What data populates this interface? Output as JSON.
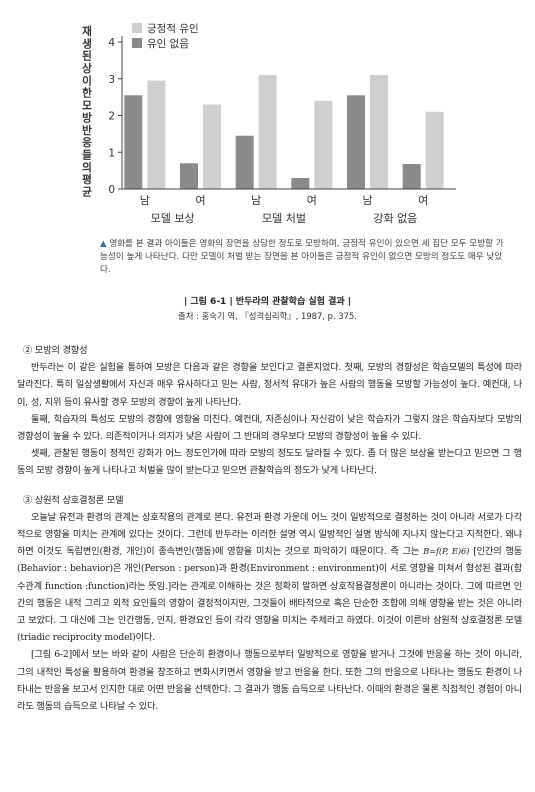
{
  "chart_data": {
    "type": "bar",
    "ylabel": "재생된 상이한 모방반응들의 평균",
    "ylim": [
      0,
      4
    ],
    "yticks": [
      0,
      1,
      2,
      3,
      4
    ],
    "legend": [
      "긍정적 유인",
      "유인 없음"
    ],
    "legend_placement": "top-left",
    "colors": {
      "positive": "#cfcfcf",
      "none": "#8a8a8a"
    },
    "groups": [
      {
        "label": "모델 보상",
        "categories": [
          "남",
          "여"
        ]
      },
      {
        "label": "모델 처벌",
        "categories": [
          "남",
          "여"
        ]
      },
      {
        "label": "강화 없음",
        "categories": [
          "남",
          "여"
        ]
      }
    ],
    "series": [
      {
        "name": "유인 없음",
        "values": [
          2.55,
          0.7,
          1.45,
          0.3,
          2.55,
          0.68
        ]
      },
      {
        "name": "긍정적 유인",
        "values": [
          2.95,
          2.3,
          3.1,
          2.4,
          3.1,
          2.1
        ]
      }
    ]
  },
  "figure": {
    "note": "영화를 본 결과 아이들은 영화의 장면을 상당한 정도로 모방하며, 긍정적 유인이 있으면 세 집단 모두 모방할 가능성이 높게 나타난다. 다만 모델이 처벌 받는 장면을 본 아이들은 긍정적 유인이 없으면 모방의 정도도 매우 낮았다.",
    "title": "| 그림 6-1 | 반두라의 관찰학습 실험 결과 |",
    "source": "출처 : 홍숙기 역, 『성격심리학』, 1987, p. 375."
  },
  "sections": {
    "s2_heading": "② 모방의 경향성",
    "s2_p1": "반두라는 이 같은 실험을 통하여 모방은 다음과 같은 경향을 보인다고 결론지었다. 첫째, 모방의 경향성은 학습모델의 특성에 따라 달라진다. 특히 일상생활에서 자신과 매우 유사하다고 믿는 사람, 정서적 유대가 높은 사람의 행동을 모방할 가능성이 높다. 예컨대, 나이, 성, 지위 등이 유사할 경우 모방의 경향이 높게 나타난다.",
    "s2_p2": "둘째, 학습자의 특성도 모방의 경향에 영향을 미친다. 예컨대, 자존심이나 자신감이 낮은 학습자가 그렇지 않은 학습자보다 모방의 경향성이 높을 수 있다. 의존적이거나 의지가 낮은 사람이 그 반대의 경우보다 모방의 경향성이 높을 수 있다.",
    "s2_p3": "셋째, 관찰된 행동이 정적인 강화가 어느 정도인가에 따라 모방의 정도도 달라질 수 있다. 좀 더 많은 보상을 받는다고 믿으면 그 행동의 모방 경향이 높게 나타나고 처벌을 많이 받는다고 믿으면 관찰학습의 정도가 낮게 나타난다.",
    "s3_heading": "③ 상원적 상호결정론 모델",
    "s3_p1_a": "오늘날 유전과 환경의 관계는 상호작용의 관계로 본다. 유전과 환경 가운데 어느 것이 일방적으로 결정하는 것이 아니라 서로가 다각적으로 영향을 미치는 관계에 있다는 것이다. 그런데 반두라는 이러한 설명 역시 일방적인 설명 방식에 지나지 않는다고 지적한다. 왜냐하면 이것도 독립변인(환경, 개인)이 종속변인(행동)에 영향을 미치는 것으로 파악하기 때문이다. 즉 그는",
    "s3_formula": "B=f(P, E)6)",
    "s3_p1_b": "[인간의 행동(Behavior : behavior)은 개인(Person : person)과 환경(Environment : environment)이 서로 영향을 미쳐서 형성된 결과(함수관계 function :function)라는 뜻임.]라는 관계로 이해하는 것은 정확히 말하면 상호작용결정론이 아니라는 것이다. 그에 따르면 인간의 행동은 내적 그리고 외적 요인들의 영향이 결정적이지만, 그것들이 배타적으로 혹은 단순한 조합에 의해 영향을 받는 것은 아니라고 보았다. 그 대신에 그는 인간행동, 인지, 환경요인 등이 각각 영향을 미치는 주체라고 하였다. 이것이 이른바 삼원적 상호결정론 모델(triadic reciprocity model)이다.",
    "s3_p2": "[그림 6-2]에서 보는 바와 같이 사람은 단순히 환경이나 행동으로부터 일방적으로 영향을 받거나 그것에 반응을 하는 것이 아니라, 그의 내적인 특성을 활용하여 환경을 창조하고 변화시키면서 영향을 받고 반응을 한다. 또한 그의 반응으로 나타나는 행동도 환경이 나타내는 반응을 보고서 인지한 대로 어떤 반응을 선택한다. 그 결과가 행동 습득으로 나타난다. 이때의 환경은 물론 직접적인 경험이 아니라도 행동의 습득으로 나타날 수 있다."
  }
}
